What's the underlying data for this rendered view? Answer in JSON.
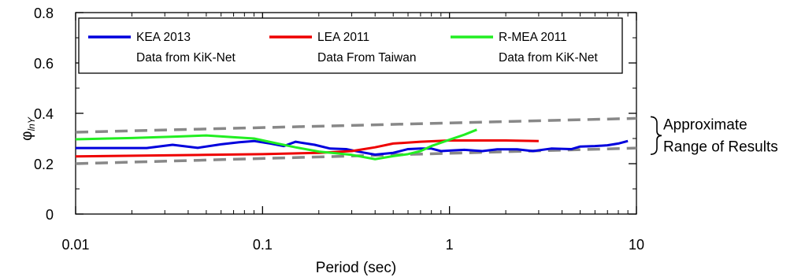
{
  "chart_data": {
    "type": "line",
    "title": "",
    "xlabel": "Period (sec)",
    "ylabel": "φ",
    "ylabel_sub": "lnY",
    "x_scale": "log",
    "xlim": [
      0.01,
      10
    ],
    "ylim": [
      0,
      0.8
    ],
    "x_ticks": [
      {
        "value": 0.01,
        "label": "0.01"
      },
      {
        "value": 0.1,
        "label": "0.1"
      },
      {
        "value": 1,
        "label": "1"
      },
      {
        "value": 10,
        "label": "10"
      }
    ],
    "y_ticks": [
      {
        "value": 0,
        "label": "0"
      },
      {
        "value": 0.2,
        "label": "0.2"
      },
      {
        "value": 0.4,
        "label": "0.4"
      },
      {
        "value": 0.6,
        "label": "0.6"
      },
      {
        "value": 0.8,
        "label": "0.8"
      }
    ],
    "grid": false,
    "legend_position": "top",
    "series": [
      {
        "name": "KEA 2013",
        "name_line2": "Data from KiK-Net",
        "color": "#0000dd",
        "x": [
          0.01,
          0.015,
          0.024,
          0.033,
          0.045,
          0.06,
          0.075,
          0.09,
          0.11,
          0.13,
          0.15,
          0.19,
          0.23,
          0.28,
          0.33,
          0.4,
          0.5,
          0.6,
          0.7,
          0.8,
          0.9,
          1.0,
          1.2,
          1.5,
          1.8,
          2.3,
          2.8,
          3.5,
          4.5,
          5.0,
          6.0,
          7.0,
          8.0,
          9.0
        ],
        "y": [
          0.262,
          0.262,
          0.262,
          0.275,
          0.263,
          0.277,
          0.285,
          0.29,
          0.28,
          0.27,
          0.287,
          0.275,
          0.26,
          0.258,
          0.247,
          0.236,
          0.243,
          0.258,
          0.26,
          0.26,
          0.25,
          0.252,
          0.255,
          0.25,
          0.257,
          0.257,
          0.25,
          0.26,
          0.258,
          0.268,
          0.27,
          0.273,
          0.28,
          0.29
        ]
      },
      {
        "name": "LEA 2011",
        "name_line2": "Data From Taiwan",
        "color": "#ee0000",
        "x": [
          0.01,
          0.05,
          0.1,
          0.2,
          0.3,
          0.4,
          0.5,
          0.7,
          1.0,
          1.5,
          2.0,
          3.0
        ],
        "y": [
          0.229,
          0.235,
          0.238,
          0.243,
          0.25,
          0.265,
          0.28,
          0.287,
          0.292,
          0.292,
          0.292,
          0.29
        ]
      },
      {
        "name": "R-MEA 2011",
        "name_line2": "Data from KiK-Net",
        "color": "#22ee22",
        "x": [
          0.01,
          0.02,
          0.035,
          0.05,
          0.07,
          0.09,
          0.12,
          0.15,
          0.2,
          0.3,
          0.4,
          0.5,
          0.6,
          0.7,
          0.8,
          1.0,
          1.2,
          1.4
        ],
        "y": [
          0.297,
          0.302,
          0.308,
          0.312,
          0.305,
          0.3,
          0.28,
          0.265,
          0.248,
          0.235,
          0.218,
          0.23,
          0.238,
          0.25,
          0.27,
          0.295,
          0.315,
          0.335
        ]
      }
    ],
    "bounds": [
      {
        "name": "upper bound",
        "color": "#888888",
        "dashed": true,
        "x": [
          0.01,
          10
        ],
        "y": [
          0.325,
          0.38
        ]
      },
      {
        "name": "lower bound",
        "color": "#888888",
        "dashed": true,
        "x": [
          0.01,
          10
        ],
        "y": [
          0.2,
          0.262
        ]
      }
    ],
    "annotation": {
      "line1": "Approximate",
      "line2": "Range of Results"
    }
  }
}
